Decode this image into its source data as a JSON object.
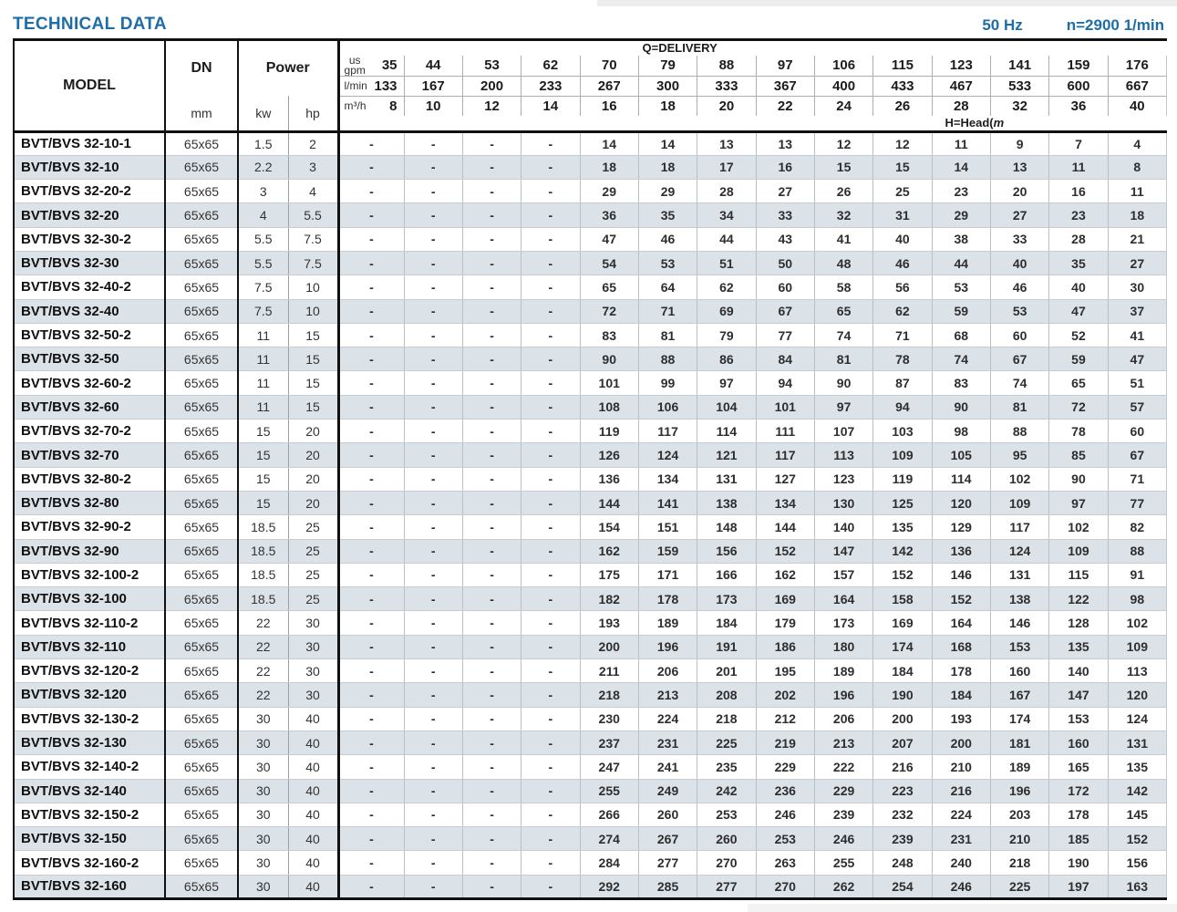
{
  "header": {
    "title": "TECHNICAL DATA",
    "frequency": "50 Hz",
    "speed": "n=2900 1/min"
  },
  "colors": {
    "accent_blue": "#1e6da6",
    "row_stripe": "#dbe2e8",
    "grid_dark": "#111111",
    "grid_light": "#b9bfc4"
  },
  "table": {
    "model_label": "MODEL",
    "dn_label": "DN",
    "dn_unit": "mm",
    "power_label": "Power",
    "kw_label": "kw",
    "hp_label": "hp",
    "q_delivery_label": "Q=DELIVERY",
    "head_label_prefix": "H=Head(",
    "head_label_m": "m",
    "head_label_suffix": ")",
    "unit_gpm_top": "us",
    "unit_gpm_bottom": "gpm",
    "unit_lmin": "l/min",
    "unit_m3h": "m³/h",
    "gpm": [
      "35",
      "44",
      "53",
      "62",
      "70",
      "79",
      "88",
      "97",
      "106",
      "115",
      "123",
      "141",
      "159",
      "176"
    ],
    "lmin": [
      "133",
      "167",
      "200",
      "233",
      "267",
      "300",
      "333",
      "367",
      "400",
      "433",
      "467",
      "533",
      "600",
      "667"
    ],
    "m3h": [
      "8",
      "10",
      "12",
      "14",
      "16",
      "18",
      "20",
      "22",
      "24",
      "26",
      "28",
      "32",
      "36",
      "40"
    ],
    "rows": [
      {
        "model": "BVT/BVS 32-10-1",
        "dn": "65x65",
        "kw": "1.5",
        "hp": "2",
        "head": [
          "-",
          "-",
          "-",
          "-",
          "14",
          "14",
          "13",
          "13",
          "12",
          "12",
          "11",
          "9",
          "7",
          "4"
        ]
      },
      {
        "model": "BVT/BVS 32-10",
        "dn": "65x65",
        "kw": "2.2",
        "hp": "3",
        "head": [
          "-",
          "-",
          "-",
          "-",
          "18",
          "18",
          "17",
          "16",
          "15",
          "15",
          "14",
          "13",
          "11",
          "8"
        ]
      },
      {
        "model": "BVT/BVS 32-20-2",
        "dn": "65x65",
        "kw": "3",
        "hp": "4",
        "head": [
          "-",
          "-",
          "-",
          "-",
          "29",
          "29",
          "28",
          "27",
          "26",
          "25",
          "23",
          "20",
          "16",
          "11"
        ]
      },
      {
        "model": "BVT/BVS 32-20",
        "dn": "65x65",
        "kw": "4",
        "hp": "5.5",
        "head": [
          "-",
          "-",
          "-",
          "-",
          "36",
          "35",
          "34",
          "33",
          "32",
          "31",
          "29",
          "27",
          "23",
          "18"
        ]
      },
      {
        "model": "BVT/BVS 32-30-2",
        "dn": "65x65",
        "kw": "5.5",
        "hp": "7.5",
        "head": [
          "-",
          "-",
          "-",
          "-",
          "47",
          "46",
          "44",
          "43",
          "41",
          "40",
          "38",
          "33",
          "28",
          "21"
        ]
      },
      {
        "model": "BVT/BVS 32-30",
        "dn": "65x65",
        "kw": "5.5",
        "hp": "7.5",
        "head": [
          "-",
          "-",
          "-",
          "-",
          "54",
          "53",
          "51",
          "50",
          "48",
          "46",
          "44",
          "40",
          "35",
          "27"
        ]
      },
      {
        "model": "BVT/BVS 32-40-2",
        "dn": "65x65",
        "kw": "7.5",
        "hp": "10",
        "head": [
          "-",
          "-",
          "-",
          "-",
          "65",
          "64",
          "62",
          "60",
          "58",
          "56",
          "53",
          "46",
          "40",
          "30"
        ]
      },
      {
        "model": "BVT/BVS 32-40",
        "dn": "65x65",
        "kw": "7.5",
        "hp": "10",
        "head": [
          "-",
          "-",
          "-",
          "-",
          "72",
          "71",
          "69",
          "67",
          "65",
          "62",
          "59",
          "53",
          "47",
          "37"
        ]
      },
      {
        "model": "BVT/BVS 32-50-2",
        "dn": "65x65",
        "kw": "11",
        "hp": "15",
        "head": [
          "-",
          "-",
          "-",
          "-",
          "83",
          "81",
          "79",
          "77",
          "74",
          "71",
          "68",
          "60",
          "52",
          "41"
        ]
      },
      {
        "model": "BVT/BVS 32-50",
        "dn": "65x65",
        "kw": "11",
        "hp": "15",
        "head": [
          "-",
          "-",
          "-",
          "-",
          "90",
          "88",
          "86",
          "84",
          "81",
          "78",
          "74",
          "67",
          "59",
          "47"
        ]
      },
      {
        "model": "BVT/BVS 32-60-2",
        "dn": "65x65",
        "kw": "11",
        "hp": "15",
        "head": [
          "-",
          "-",
          "-",
          "-",
          "101",
          "99",
          "97",
          "94",
          "90",
          "87",
          "83",
          "74",
          "65",
          "51"
        ]
      },
      {
        "model": "BVT/BVS 32-60",
        "dn": "65x65",
        "kw": "11",
        "hp": "15",
        "head": [
          "-",
          "-",
          "-",
          "-",
          "108",
          "106",
          "104",
          "101",
          "97",
          "94",
          "90",
          "81",
          "72",
          "57"
        ]
      },
      {
        "model": "BVT/BVS 32-70-2",
        "dn": "65x65",
        "kw": "15",
        "hp": "20",
        "head": [
          "-",
          "-",
          "-",
          "-",
          "119",
          "117",
          "114",
          "111",
          "107",
          "103",
          "98",
          "88",
          "78",
          "60"
        ]
      },
      {
        "model": "BVT/BVS 32-70",
        "dn": "65x65",
        "kw": "15",
        "hp": "20",
        "head": [
          "-",
          "-",
          "-",
          "-",
          "126",
          "124",
          "121",
          "117",
          "113",
          "109",
          "105",
          "95",
          "85",
          "67"
        ]
      },
      {
        "model": "BVT/BVS 32-80-2",
        "dn": "65x65",
        "kw": "15",
        "hp": "20",
        "head": [
          "-",
          "-",
          "-",
          "-",
          "136",
          "134",
          "131",
          "127",
          "123",
          "119",
          "114",
          "102",
          "90",
          "71"
        ]
      },
      {
        "model": "BVT/BVS 32-80",
        "dn": "65x65",
        "kw": "15",
        "hp": "20",
        "head": [
          "-",
          "-",
          "-",
          "-",
          "144",
          "141",
          "138",
          "134",
          "130",
          "125",
          "120",
          "109",
          "97",
          "77"
        ]
      },
      {
        "model": "BVT/BVS 32-90-2",
        "dn": "65x65",
        "kw": "18.5",
        "hp": "25",
        "head": [
          "-",
          "-",
          "-",
          "-",
          "154",
          "151",
          "148",
          "144",
          "140",
          "135",
          "129",
          "117",
          "102",
          "82"
        ]
      },
      {
        "model": "BVT/BVS 32-90",
        "dn": "65x65",
        "kw": "18.5",
        "hp": "25",
        "head": [
          "-",
          "-",
          "-",
          "-",
          "162",
          "159",
          "156",
          "152",
          "147",
          "142",
          "136",
          "124",
          "109",
          "88"
        ]
      },
      {
        "model": "BVT/BVS 32-100-2",
        "dn": "65x65",
        "kw": "18.5",
        "hp": "25",
        "head": [
          "-",
          "-",
          "-",
          "-",
          "175",
          "171",
          "166",
          "162",
          "157",
          "152",
          "146",
          "131",
          "115",
          "91"
        ]
      },
      {
        "model": "BVT/BVS 32-100",
        "dn": "65x65",
        "kw": "18.5",
        "hp": "25",
        "head": [
          "-",
          "-",
          "-",
          "-",
          "182",
          "178",
          "173",
          "169",
          "164",
          "158",
          "152",
          "138",
          "122",
          "98"
        ]
      },
      {
        "model": "BVT/BVS 32-110-2",
        "dn": "65x65",
        "kw": "22",
        "hp": "30",
        "head": [
          "-",
          "-",
          "-",
          "-",
          "193",
          "189",
          "184",
          "179",
          "173",
          "169",
          "164",
          "146",
          "128",
          "102"
        ]
      },
      {
        "model": "BVT/BVS 32-110",
        "dn": "65x65",
        "kw": "22",
        "hp": "30",
        "head": [
          "-",
          "-",
          "-",
          "-",
          "200",
          "196",
          "191",
          "186",
          "180",
          "174",
          "168",
          "153",
          "135",
          "109"
        ]
      },
      {
        "model": "BVT/BVS 32-120-2",
        "dn": "65x65",
        "kw": "22",
        "hp": "30",
        "head": [
          "-",
          "-",
          "-",
          "-",
          "211",
          "206",
          "201",
          "195",
          "189",
          "184",
          "178",
          "160",
          "140",
          "113"
        ]
      },
      {
        "model": "BVT/BVS 32-120",
        "dn": "65x65",
        "kw": "22",
        "hp": "30",
        "head": [
          "-",
          "-",
          "-",
          "-",
          "218",
          "213",
          "208",
          "202",
          "196",
          "190",
          "184",
          "167",
          "147",
          "120"
        ]
      },
      {
        "model": "BVT/BVS 32-130-2",
        "dn": "65x65",
        "kw": "30",
        "hp": "40",
        "head": [
          "-",
          "-",
          "-",
          "-",
          "230",
          "224",
          "218",
          "212",
          "206",
          "200",
          "193",
          "174",
          "153",
          "124"
        ]
      },
      {
        "model": "BVT/BVS 32-130",
        "dn": "65x65",
        "kw": "30",
        "hp": "40",
        "head": [
          "-",
          "-",
          "-",
          "-",
          "237",
          "231",
          "225",
          "219",
          "213",
          "207",
          "200",
          "181",
          "160",
          "131"
        ]
      },
      {
        "model": "BVT/BVS 32-140-2",
        "dn": "65x65",
        "kw": "30",
        "hp": "40",
        "head": [
          "-",
          "-",
          "-",
          "-",
          "247",
          "241",
          "235",
          "229",
          "222",
          "216",
          "210",
          "189",
          "165",
          "135"
        ]
      },
      {
        "model": "BVT/BVS 32-140",
        "dn": "65x65",
        "kw": "30",
        "hp": "40",
        "head": [
          "-",
          "-",
          "-",
          "-",
          "255",
          "249",
          "242",
          "236",
          "229",
          "223",
          "216",
          "196",
          "172",
          "142"
        ]
      },
      {
        "model": "BVT/BVS 32-150-2",
        "dn": "65x65",
        "kw": "30",
        "hp": "40",
        "head": [
          "-",
          "-",
          "-",
          "-",
          "266",
          "260",
          "253",
          "246",
          "239",
          "232",
          "224",
          "203",
          "178",
          "145"
        ]
      },
      {
        "model": "BVT/BVS 32-150",
        "dn": "65x65",
        "kw": "30",
        "hp": "40",
        "head": [
          "-",
          "-",
          "-",
          "-",
          "274",
          "267",
          "260",
          "253",
          "246",
          "239",
          "231",
          "210",
          "185",
          "152"
        ]
      },
      {
        "model": "BVT/BVS 32-160-2",
        "dn": "65x65",
        "kw": "30",
        "hp": "40",
        "head": [
          "-",
          "-",
          "-",
          "-",
          "284",
          "277",
          "270",
          "263",
          "255",
          "248",
          "240",
          "218",
          "190",
          "156"
        ]
      },
      {
        "model": "BVT/BVS 32-160",
        "dn": "65x65",
        "kw": "30",
        "hp": "40",
        "head": [
          "-",
          "-",
          "-",
          "-",
          "292",
          "285",
          "277",
          "270",
          "262",
          "254",
          "246",
          "225",
          "197",
          "163"
        ]
      }
    ]
  }
}
